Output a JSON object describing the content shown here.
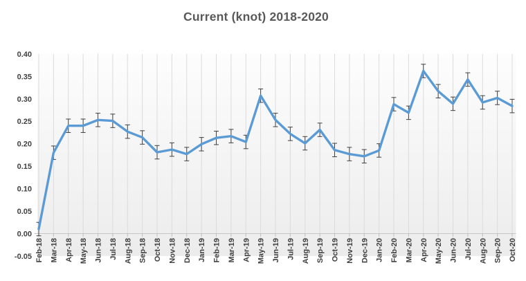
{
  "title": "Current (knot) 2018-2020",
  "chart_data": {
    "type": "line",
    "title": "Current (knot) 2018-2020",
    "xlabel": "",
    "ylabel": "",
    "x": [
      "Feb-18",
      "Mar-18",
      "Apr-18",
      "May-18",
      "Jun-18",
      "Jul-18",
      "Aug-18",
      "Sep-18",
      "Oct-18",
      "Nov-18",
      "Dec-18",
      "Jan-19",
      "Feb-19",
      "Mar-19",
      "Apr-19",
      "May-19",
      "Jun-19",
      "Jul-19",
      "Aug-19",
      "Sep-19",
      "Oct-19",
      "Nov-19",
      "Dec-19",
      "Jan-20",
      "Feb-20",
      "Mar-20",
      "Apr-20",
      "May-20",
      "Jun-20",
      "Jul-20",
      "Aug-20",
      "Sep-20",
      "Oct-20"
    ],
    "series": [
      {
        "name": "Current (knot)",
        "values": [
          0.01,
          0.18,
          0.24,
          0.24,
          0.253,
          0.251,
          0.227,
          0.214,
          0.181,
          0.187,
          0.177,
          0.199,
          0.213,
          0.217,
          0.204,
          0.307,
          0.253,
          0.222,
          0.201,
          0.231,
          0.186,
          0.177,
          0.172,
          0.185,
          0.288,
          0.269,
          0.362,
          0.317,
          0.289,
          0.343,
          0.292,
          0.302,
          0.284
        ],
        "error_bar": 0.015
      }
    ],
    "ylim": [
      -0.05,
      0.4
    ],
    "ytick_step": 0.05,
    "ytick_labels": [
      "0.40",
      "0.35",
      "0.30",
      "0.25",
      "0.20",
      "0.15",
      "0.10",
      "0.05",
      "0.00",
      "-0.05"
    ],
    "grid": "vertical-only",
    "legend": "none",
    "colors": {
      "line": "#5B9BD5",
      "error_bar": "#3f3f3f",
      "gridline": "#DBDBDB",
      "axis_line": "#C6C6C6",
      "tick": "#BFBFBF",
      "title_text": "#595959",
      "axis_text": "#404040",
      "plot_bg_top": "#FDFDFD",
      "plot_bg_bottom": "#ECECEC",
      "page_bg": "#FFFFFF"
    }
  }
}
